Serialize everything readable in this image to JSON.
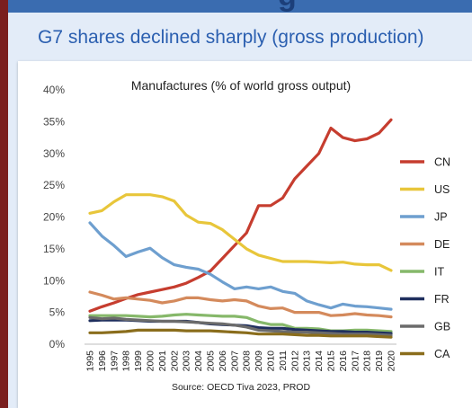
{
  "slide": {
    "heading_fragment": "g",
    "title": "G7 shares declined sharply (gross production)"
  },
  "chart_data": {
    "type": "line",
    "title": "Manufactures (% of world gross output)",
    "source": "Source: OECD Tiva 2023, PROD",
    "x": [
      1995,
      1996,
      1997,
      1998,
      1999,
      2000,
      2001,
      2002,
      2003,
      2004,
      2005,
      2006,
      2007,
      2008,
      2009,
      2010,
      2011,
      2012,
      2013,
      2014,
      2015,
      2016,
      2017,
      2018,
      2019,
      2020
    ],
    "ylim": [
      0,
      40
    ],
    "yticks": [
      "0%",
      "5%",
      "10%",
      "15%",
      "20%",
      "25%",
      "30%",
      "35%",
      "40%"
    ],
    "grid": false,
    "legend_position": "right",
    "series": [
      {
        "name": "CN",
        "color": "#c63d2f",
        "values": [
          5.2,
          5.9,
          6.5,
          7.2,
          7.8,
          8.2,
          8.6,
          9.0,
          9.6,
          10.5,
          11.5,
          13.5,
          15.5,
          17.5,
          21.8,
          21.8,
          23.0,
          26.0,
          28.0,
          30.0,
          34.0,
          32.5,
          32.0,
          32.3,
          33.2,
          35.3
        ]
      },
      {
        "name": "US",
        "color": "#e8c63a",
        "values": [
          20.6,
          21.0,
          22.4,
          23.5,
          23.5,
          23.5,
          23.2,
          22.5,
          20.3,
          19.2,
          19.0,
          18.0,
          16.5,
          15.0,
          14.0,
          13.5,
          13.0,
          13.0,
          13.0,
          12.9,
          12.8,
          12.9,
          12.6,
          12.5,
          12.5,
          11.6
        ]
      },
      {
        "name": "JP",
        "color": "#6e9fcf",
        "values": [
          19.1,
          17.0,
          15.5,
          13.8,
          14.5,
          15.1,
          13.6,
          12.5,
          12.1,
          11.8,
          11.0,
          9.8,
          8.7,
          9.0,
          8.7,
          9.0,
          8.3,
          8.0,
          6.8,
          6.2,
          5.7,
          6.3,
          6.0,
          5.9,
          5.7,
          5.5
        ]
      },
      {
        "name": "DE",
        "color": "#d48a5c",
        "values": [
          8.2,
          7.7,
          7.1,
          7.3,
          7.1,
          6.9,
          6.5,
          6.8,
          7.3,
          7.3,
          7.0,
          6.8,
          7.0,
          6.8,
          6.0,
          5.6,
          5.7,
          5.0,
          5.0,
          5.0,
          4.5,
          4.6,
          4.8,
          4.6,
          4.5,
          4.3
        ]
      },
      {
        "name": "IT",
        "color": "#86b86a",
        "values": [
          4.5,
          4.5,
          4.5,
          4.5,
          4.4,
          4.3,
          4.4,
          4.6,
          4.7,
          4.6,
          4.5,
          4.4,
          4.4,
          4.2,
          3.5,
          3.1,
          3.1,
          2.5,
          2.5,
          2.4,
          2.1,
          2.1,
          2.2,
          2.2,
          2.1,
          2.0
        ]
      },
      {
        "name": "FR",
        "color": "#1f2f5e",
        "values": [
          3.7,
          3.8,
          3.8,
          3.8,
          3.7,
          3.6,
          3.6,
          3.6,
          3.6,
          3.4,
          3.2,
          3.1,
          3.0,
          2.9,
          2.6,
          2.5,
          2.5,
          2.3,
          2.2,
          2.1,
          2.0,
          2.0,
          1.9,
          1.9,
          1.8,
          1.7
        ]
      },
      {
        "name": "GB",
        "color": "#6b6b6b",
        "values": [
          4.2,
          4.0,
          4.1,
          3.9,
          3.8,
          3.7,
          3.6,
          3.6,
          3.5,
          3.4,
          3.3,
          3.2,
          3.0,
          2.7,
          2.2,
          2.1,
          2.0,
          1.9,
          1.9,
          1.8,
          1.7,
          1.6,
          1.6,
          1.6,
          1.5,
          1.4
        ]
      },
      {
        "name": "CA",
        "color": "#8a6d1c",
        "values": [
          1.8,
          1.8,
          1.9,
          2.0,
          2.2,
          2.2,
          2.2,
          2.2,
          2.1,
          2.1,
          2.1,
          2.0,
          1.9,
          1.8,
          1.6,
          1.6,
          1.6,
          1.5,
          1.4,
          1.4,
          1.3,
          1.3,
          1.3,
          1.3,
          1.2,
          1.1
        ]
      }
    ]
  }
}
